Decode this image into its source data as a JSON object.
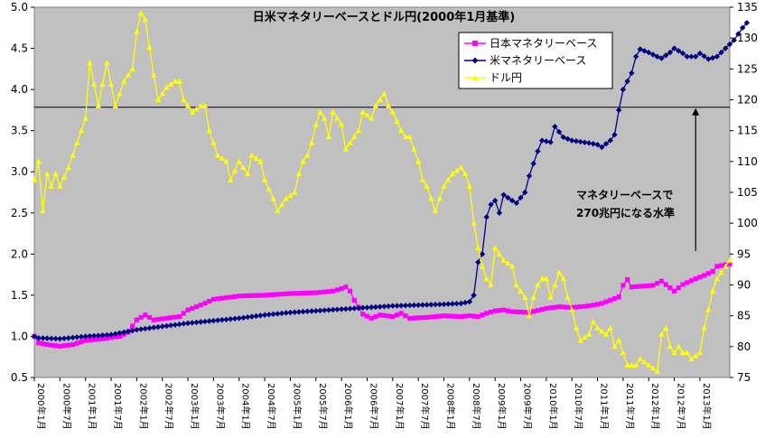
{
  "chart_data": {
    "type": "line",
    "title": "日米マネタリーベースとドル円(2000年1月基準)",
    "categories": [
      "2000年1月",
      "2000年7月",
      "2001年1月",
      "2001年7月",
      "2002年1月",
      "2002年7月",
      "2003年1月",
      "2003年7月",
      "2004年1月",
      "2004年7月",
      "2005年1月",
      "2005年7月",
      "2006年1月",
      "2006年7月",
      "2007年1月",
      "2007年7月",
      "2008年1月",
      "2008年7月",
      "2009年1月",
      "2009年7月",
      "2010年1月",
      "2010年7月",
      "2011年1月",
      "2011年7月",
      "2012年1月",
      "2012年7月",
      "2013年1月"
    ],
    "y_left": {
      "min": 0.5,
      "max": 5.0,
      "ticks": [
        "0.5",
        "1.0",
        "1.5",
        "2.0",
        "2.5",
        "3.0",
        "3.5",
        "4.0",
        "4.5",
        "5.0"
      ]
    },
    "y_right": {
      "min": 75,
      "max": 135,
      "ticks": [
        "75",
        "80",
        "85",
        "90",
        "95",
        "100",
        "105",
        "110",
        "115",
        "120",
        "125",
        "130",
        "135"
      ]
    },
    "series": [
      {
        "name": "日本マネタリーベース",
        "axis": "left",
        "color": "#ff00ff",
        "marker": "square",
        "points": [
          [
            0,
            1.0
          ],
          [
            1,
            0.92
          ],
          [
            3,
            0.9
          ],
          [
            6,
            0.88
          ],
          [
            9,
            0.9
          ],
          [
            12,
            0.95
          ],
          [
            16,
            0.97
          ],
          [
            20,
            1.0
          ],
          [
            22,
            1.05
          ],
          [
            24,
            1.2
          ],
          [
            26,
            1.26
          ],
          [
            28,
            1.2
          ],
          [
            31,
            1.22
          ],
          [
            34,
            1.24
          ],
          [
            36,
            1.32
          ],
          [
            39,
            1.38
          ],
          [
            42,
            1.45
          ],
          [
            48,
            1.49
          ],
          [
            54,
            1.5
          ],
          [
            60,
            1.52
          ],
          [
            66,
            1.53
          ],
          [
            70,
            1.55
          ],
          [
            72,
            1.58
          ],
          [
            73,
            1.6
          ],
          [
            74,
            1.55
          ],
          [
            75,
            1.44
          ],
          [
            77,
            1.27
          ],
          [
            79,
            1.22
          ],
          [
            81,
            1.26
          ],
          [
            84,
            1.24
          ],
          [
            86,
            1.28
          ],
          [
            88,
            1.22
          ],
          [
            92,
            1.23
          ],
          [
            96,
            1.25
          ],
          [
            100,
            1.24
          ],
          [
            102,
            1.25
          ],
          [
            104,
            1.24
          ],
          [
            106,
            1.28
          ],
          [
            108,
            1.31
          ],
          [
            110,
            1.32
          ],
          [
            112,
            1.3
          ],
          [
            116,
            1.29
          ],
          [
            120,
            1.34
          ],
          [
            123,
            1.36
          ],
          [
            126,
            1.35
          ],
          [
            130,
            1.37
          ],
          [
            133,
            1.4
          ],
          [
            135,
            1.44
          ],
          [
            137,
            1.48
          ],
          [
            138,
            1.62
          ],
          [
            139,
            1.69
          ],
          [
            140,
            1.6
          ],
          [
            145,
            1.62
          ],
          [
            147,
            1.67
          ],
          [
            150,
            1.55
          ],
          [
            152,
            1.63
          ],
          [
            155,
            1.7
          ],
          [
            157,
            1.74
          ],
          [
            159,
            1.79
          ],
          [
            160,
            1.85
          ],
          [
            163,
            1.88
          ]
        ]
      },
      {
        "name": "米マネタリーベース",
        "axis": "left",
        "color": "#000080",
        "marker": "diamond",
        "points": [
          [
            0,
            1.0
          ],
          [
            1,
            0.98
          ],
          [
            6,
            0.97
          ],
          [
            12,
            1.0
          ],
          [
            18,
            1.02
          ],
          [
            24,
            1.08
          ],
          [
            30,
            1.12
          ],
          [
            36,
            1.16
          ],
          [
            42,
            1.19
          ],
          [
            48,
            1.22
          ],
          [
            54,
            1.26
          ],
          [
            60,
            1.29
          ],
          [
            66,
            1.31
          ],
          [
            72,
            1.33
          ],
          [
            78,
            1.35
          ],
          [
            84,
            1.37
          ],
          [
            90,
            1.38
          ],
          [
            96,
            1.39
          ],
          [
            100,
            1.4
          ],
          [
            102,
            1.42
          ],
          [
            103,
            1.5
          ],
          [
            104,
            1.9
          ],
          [
            105,
            2.0
          ],
          [
            106,
            2.45
          ],
          [
            107,
            2.6
          ],
          [
            108,
            2.65
          ],
          [
            109,
            2.5
          ],
          [
            110,
            2.72
          ],
          [
            112,
            2.65
          ],
          [
            113,
            2.62
          ],
          [
            115,
            2.75
          ],
          [
            116,
            2.95
          ],
          [
            118,
            3.25
          ],
          [
            119,
            3.38
          ],
          [
            121,
            3.36
          ],
          [
            122,
            3.55
          ],
          [
            124,
            3.42
          ],
          [
            126,
            3.38
          ],
          [
            130,
            3.35
          ],
          [
            132,
            3.33
          ],
          [
            133,
            3.3
          ],
          [
            135,
            3.38
          ],
          [
            136,
            3.45
          ],
          [
            137,
            3.75
          ],
          [
            138,
            4.0
          ],
          [
            140,
            4.2
          ],
          [
            141,
            4.4
          ],
          [
            142,
            4.49
          ],
          [
            144,
            4.45
          ],
          [
            146,
            4.4
          ],
          [
            147,
            4.38
          ],
          [
            149,
            4.45
          ],
          [
            150,
            4.5
          ],
          [
            152,
            4.44
          ],
          [
            153,
            4.4
          ],
          [
            155,
            4.4
          ],
          [
            156,
            4.44
          ],
          [
            158,
            4.37
          ],
          [
            160,
            4.4
          ],
          [
            162,
            4.5
          ],
          [
            164,
            4.6
          ],
          [
            166,
            4.75
          ],
          [
            167,
            4.81
          ]
        ]
      },
      {
        "name": "ドル円",
        "axis": "right",
        "color": "#ffff00",
        "marker": "triangle",
        "points": [
          [
            0,
            107
          ],
          [
            1,
            110
          ],
          [
            2,
            102
          ],
          [
            3,
            108
          ],
          [
            4,
            106
          ],
          [
            5,
            108
          ],
          [
            6,
            106
          ],
          [
            8,
            109
          ],
          [
            10,
            113
          ],
          [
            12,
            117
          ],
          [
            13,
            126
          ],
          [
            15,
            119
          ],
          [
            17,
            126
          ],
          [
            19,
            119
          ],
          [
            21,
            123
          ],
          [
            23,
            125
          ],
          [
            24,
            131
          ],
          [
            25,
            134
          ],
          [
            26,
            133
          ],
          [
            28,
            124
          ],
          [
            29,
            120
          ],
          [
            31,
            122
          ],
          [
            33,
            123
          ],
          [
            34,
            123
          ],
          [
            35,
            120
          ],
          [
            37,
            118
          ],
          [
            39,
            119
          ],
          [
            40,
            119
          ],
          [
            41,
            115
          ],
          [
            43,
            111
          ],
          [
            45,
            110
          ],
          [
            46,
            107
          ],
          [
            48,
            110
          ],
          [
            50,
            108
          ],
          [
            51,
            111
          ],
          [
            53,
            110
          ],
          [
            54,
            107
          ],
          [
            56,
            104
          ],
          [
            57,
            102
          ],
          [
            59,
            104
          ],
          [
            61,
            105
          ],
          [
            62,
            108
          ],
          [
            63,
            110
          ],
          [
            64,
            111
          ],
          [
            65,
            113
          ],
          [
            66,
            116
          ],
          [
            67,
            118
          ],
          [
            68,
            117
          ],
          [
            69,
            114
          ],
          [
            70,
            118
          ],
          [
            71,
            117
          ],
          [
            72,
            116
          ],
          [
            73,
            112
          ],
          [
            75,
            114
          ],
          [
            76,
            115
          ],
          [
            77,
            118
          ],
          [
            79,
            117
          ],
          [
            80,
            119
          ],
          [
            82,
            121
          ],
          [
            83,
            119
          ],
          [
            84,
            118
          ],
          [
            86,
            115
          ],
          [
            87,
            114
          ],
          [
            88,
            114
          ],
          [
            90,
            110
          ],
          [
            91,
            107
          ],
          [
            92,
            106
          ],
          [
            94,
            102
          ],
          [
            95,
            104
          ],
          [
            96,
            106
          ],
          [
            97,
            107
          ],
          [
            98,
            108
          ],
          [
            100,
            109
          ],
          [
            101,
            108
          ],
          [
            102,
            106
          ],
          [
            103,
            100
          ],
          [
            104,
            96
          ],
          [
            105,
            93
          ],
          [
            106,
            91
          ],
          [
            107,
            90
          ],
          [
            108,
            96
          ],
          [
            109,
            95
          ],
          [
            110,
            94
          ],
          [
            112,
            93
          ],
          [
            113,
            90
          ],
          [
            114,
            89
          ],
          [
            115,
            88
          ],
          [
            116,
            85
          ],
          [
            117,
            88
          ],
          [
            118,
            90
          ],
          [
            119,
            91
          ],
          [
            120,
            91
          ],
          [
            121,
            88
          ],
          [
            122,
            90
          ],
          [
            123,
            92
          ],
          [
            124,
            91
          ],
          [
            125,
            88
          ],
          [
            126,
            86
          ],
          [
            127,
            83
          ],
          [
            128,
            81
          ],
          [
            130,
            82
          ],
          [
            131,
            84
          ],
          [
            132,
            83
          ],
          [
            134,
            82
          ],
          [
            135,
            83
          ],
          [
            136,
            80
          ],
          [
            137,
            81
          ],
          [
            138,
            79
          ],
          [
            139,
            77
          ],
          [
            140,
            77
          ],
          [
            141,
            77
          ],
          [
            142,
            78
          ],
          [
            144,
            77
          ],
          [
            146,
            76
          ],
          [
            147,
            82
          ],
          [
            148,
            83
          ],
          [
            149,
            80
          ],
          [
            150,
            79
          ],
          [
            151,
            80
          ],
          [
            152,
            79
          ],
          [
            153,
            79
          ],
          [
            154,
            78
          ],
          [
            156,
            79
          ],
          [
            157,
            83
          ],
          [
            158,
            86
          ],
          [
            159,
            89
          ],
          [
            160,
            91
          ],
          [
            161,
            92
          ],
          [
            162,
            93
          ],
          [
            163,
            94
          ]
        ]
      }
    ],
    "reference_line": {
      "y_right": 118.8,
      "color": "#000000"
    },
    "annotation": {
      "lines": [
        "マネタリーベースで",
        "270兆円になる水準"
      ],
      "arrow_x_month": 155,
      "arrow_from_right": 95.5,
      "arrow_to_right": 118.8
    },
    "legend": {
      "placement": "top-center"
    },
    "background": "#c0c0c0",
    "grid": false
  }
}
